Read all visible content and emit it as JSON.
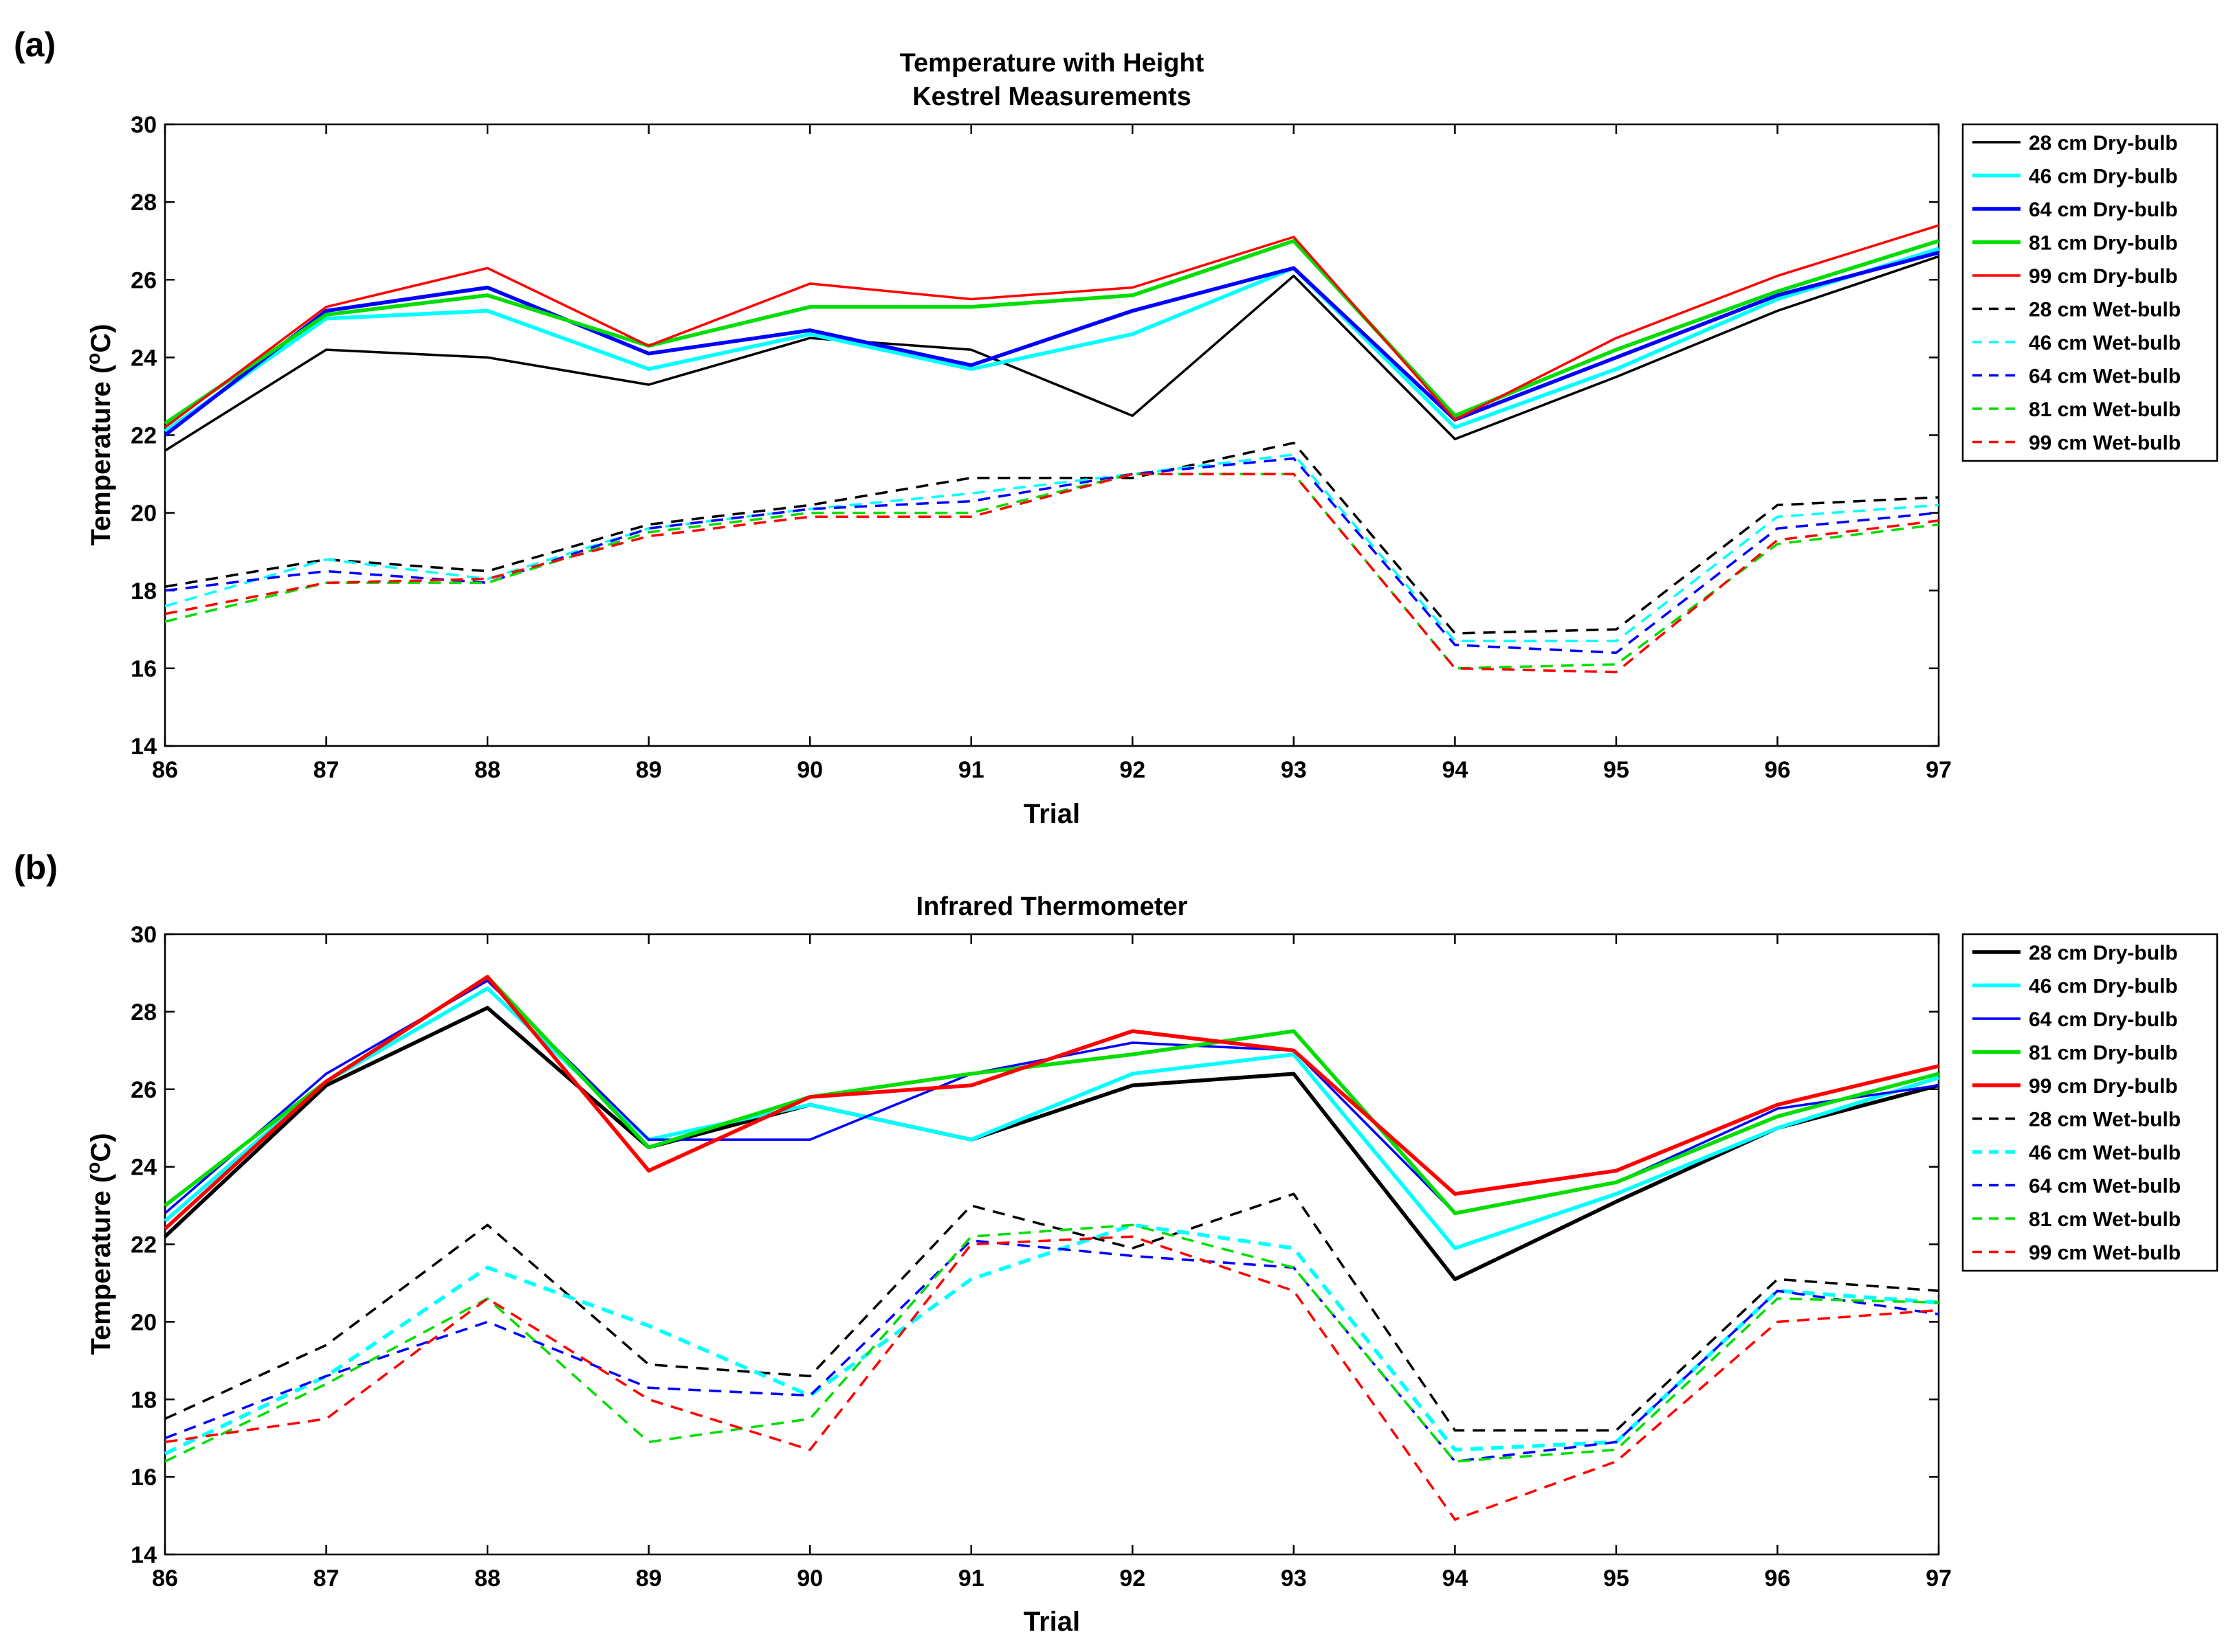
{
  "chart_data": [
    {
      "panel_label": "(a)",
      "type": "line",
      "title": [
        "Temperature with Height",
        "Kestrel Measurements"
      ],
      "xlabel": "Trial",
      "ylabel": "Temperature (°C)",
      "ylabel_parts": {
        "prefix": "Temperature (",
        "sup": "o",
        "suffix": "C)"
      },
      "x": [
        86,
        87,
        88,
        89,
        90,
        91,
        92,
        93,
        94,
        95,
        96,
        97
      ],
      "xlim": [
        86,
        97
      ],
      "ylim": [
        14,
        30
      ],
      "yticks": [
        14,
        16,
        18,
        20,
        22,
        24,
        26,
        28,
        30
      ],
      "legend_position": "outside-right",
      "series": [
        {
          "name": "28 cm Dry-bulb",
          "color": "#000000",
          "dash": "solid",
          "width": "thin",
          "values": [
            21.6,
            24.2,
            24.0,
            23.3,
            24.5,
            24.2,
            22.5,
            26.1,
            21.9,
            23.5,
            25.2,
            26.6
          ]
        },
        {
          "name": "46 cm Dry-bulb",
          "color": "#00FFFF",
          "dash": "solid",
          "width": "thick",
          "values": [
            22.1,
            25.0,
            25.2,
            23.7,
            24.6,
            23.7,
            24.6,
            26.3,
            22.2,
            23.7,
            25.5,
            26.8
          ]
        },
        {
          "name": "64 cm Dry-bulb",
          "color": "#0000FF",
          "dash": "solid",
          "width": "thick",
          "values": [
            22.0,
            25.2,
            25.8,
            24.1,
            24.7,
            23.8,
            25.2,
            26.3,
            22.4,
            24.0,
            25.6,
            26.7
          ]
        },
        {
          "name": "81 cm Dry-bulb",
          "color": "#00DD00",
          "dash": "solid",
          "width": "thick",
          "values": [
            22.3,
            25.1,
            25.6,
            24.3,
            25.3,
            25.3,
            25.6,
            27.0,
            22.5,
            24.2,
            25.7,
            27.0
          ]
        },
        {
          "name": "99 cm Dry-bulb",
          "color": "#FF0000",
          "dash": "solid",
          "width": "thin",
          "values": [
            22.2,
            25.3,
            26.3,
            24.3,
            25.9,
            25.5,
            25.8,
            27.1,
            22.4,
            24.5,
            26.1,
            27.4
          ]
        },
        {
          "name": "28 cm Wet-bulb",
          "color": "#000000",
          "dash": "dashed",
          "width": "thin",
          "values": [
            18.1,
            18.8,
            18.5,
            19.7,
            20.2,
            20.9,
            20.9,
            21.8,
            16.9,
            17.0,
            20.2,
            20.4
          ]
        },
        {
          "name": "46 cm Wet-bulb",
          "color": "#00FFFF",
          "dash": "dashed",
          "width": "thin",
          "values": [
            17.6,
            18.8,
            18.3,
            19.6,
            20.1,
            20.5,
            21.0,
            21.5,
            16.7,
            16.7,
            19.9,
            20.2
          ]
        },
        {
          "name": "64 cm Wet-bulb",
          "color": "#0000FF",
          "dash": "dashed",
          "width": "thin",
          "values": [
            18.0,
            18.5,
            18.2,
            19.6,
            20.1,
            20.3,
            21.0,
            21.4,
            16.6,
            16.4,
            19.6,
            20.0
          ]
        },
        {
          "name": "81 cm Wet-bulb",
          "color": "#00DD00",
          "dash": "dashed",
          "width": "thin",
          "values": [
            17.2,
            18.2,
            18.2,
            19.5,
            20.0,
            20.0,
            21.0,
            21.0,
            16.0,
            16.1,
            19.2,
            19.7
          ]
        },
        {
          "name": "99 cm Wet-bulb",
          "color": "#FF0000",
          "dash": "dashed",
          "width": "thin",
          "values": [
            17.4,
            18.2,
            18.3,
            19.4,
            19.9,
            19.9,
            21.0,
            21.0,
            16.0,
            15.9,
            19.3,
            19.8
          ]
        }
      ]
    },
    {
      "panel_label": "(b)",
      "type": "line",
      "title": [
        "Infrared Thermometer"
      ],
      "xlabel": "Trial",
      "ylabel": "Temperature (°C)",
      "ylabel_parts": {
        "prefix": "Temperature (",
        "sup": "o",
        "suffix": "C)"
      },
      "x": [
        86,
        87,
        88,
        89,
        90,
        91,
        92,
        93,
        94,
        95,
        96,
        97
      ],
      "xlim": [
        86,
        97
      ],
      "ylim": [
        14,
        30
      ],
      "yticks": [
        14,
        16,
        18,
        20,
        22,
        24,
        26,
        28,
        30
      ],
      "legend_position": "outside-right",
      "series": [
        {
          "name": "28 cm Dry-bulb",
          "color": "#000000",
          "dash": "solid",
          "width": "thick",
          "values": [
            22.2,
            26.1,
            28.1,
            24.5,
            25.6,
            24.7,
            26.1,
            26.4,
            21.1,
            23.1,
            25.0,
            26.1
          ]
        },
        {
          "name": "46 cm Dry-bulb",
          "color": "#00FFFF",
          "dash": "solid",
          "width": "thick",
          "values": [
            22.6,
            26.2,
            28.6,
            24.7,
            25.6,
            24.7,
            26.4,
            26.9,
            21.9,
            23.3,
            25.0,
            26.3
          ]
        },
        {
          "name": "64 cm Dry-bulb",
          "color": "#0000FF",
          "dash": "solid",
          "width": "thin",
          "values": [
            22.8,
            26.4,
            28.8,
            24.7,
            24.7,
            26.4,
            27.2,
            27.0,
            22.8,
            23.6,
            25.5,
            26.1
          ]
        },
        {
          "name": "81 cm Dry-bulb",
          "color": "#00DD00",
          "dash": "solid",
          "width": "thick",
          "values": [
            23.0,
            26.2,
            28.9,
            24.5,
            25.8,
            26.4,
            26.9,
            27.5,
            22.8,
            23.6,
            25.3,
            26.4
          ]
        },
        {
          "name": "99 cm Dry-bulb",
          "color": "#FF0000",
          "dash": "solid",
          "width": "thick",
          "values": [
            22.4,
            26.2,
            28.9,
            23.9,
            25.8,
            26.1,
            27.5,
            27.0,
            23.3,
            23.9,
            25.6,
            26.6
          ]
        },
        {
          "name": "28 cm Wet-bulb",
          "color": "#000000",
          "dash": "dashed",
          "width": "thin",
          "values": [
            17.5,
            19.4,
            22.5,
            18.9,
            18.6,
            23.0,
            21.9,
            23.3,
            17.2,
            17.2,
            21.1,
            20.8
          ]
        },
        {
          "name": "46 cm Wet-bulb",
          "color": "#00FFFF",
          "dash": "dashed",
          "width": "thick",
          "values": [
            16.6,
            18.6,
            21.4,
            19.9,
            18.1,
            21.1,
            22.5,
            21.9,
            16.7,
            16.9,
            20.8,
            20.5
          ]
        },
        {
          "name": "64 cm Wet-bulb",
          "color": "#0000FF",
          "dash": "dashed",
          "width": "thin",
          "values": [
            17.0,
            18.6,
            20.0,
            18.3,
            18.1,
            22.1,
            21.7,
            21.4,
            16.4,
            16.9,
            20.8,
            20.2
          ]
        },
        {
          "name": "81 cm Wet-bulb",
          "color": "#00DD00",
          "dash": "dashed",
          "width": "thin",
          "values": [
            16.4,
            18.4,
            20.6,
            16.9,
            17.5,
            22.2,
            22.5,
            21.4,
            16.4,
            16.7,
            20.6,
            20.5
          ]
        },
        {
          "name": "99 cm Wet-bulb",
          "color": "#FF0000",
          "dash": "dashed",
          "width": "thin",
          "values": [
            16.9,
            17.5,
            20.6,
            18.0,
            16.7,
            22.0,
            22.2,
            20.8,
            14.9,
            16.4,
            20.0,
            20.3
          ]
        }
      ]
    }
  ]
}
